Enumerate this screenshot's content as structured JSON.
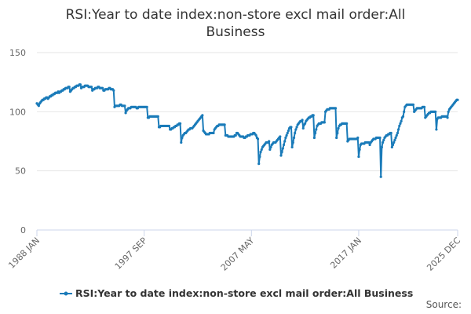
{
  "chart_data": {
    "type": "line",
    "title": "RSI:Year to date index:non-store excl mail order:All Business",
    "source_label": "Source:",
    "categories": [
      "1988 JAN",
      null,
      null,
      null,
      null,
      null,
      null,
      null,
      null,
      null,
      null,
      null,
      null,
      null,
      null,
      null,
      null,
      null,
      null,
      null,
      null,
      null,
      null,
      null,
      null,
      null,
      null,
      null,
      null,
      null,
      null,
      null,
      null,
      null,
      null,
      null,
      null,
      null,
      null,
      null,
      null,
      null,
      null,
      null,
      null,
      null,
      null,
      null,
      null,
      null,
      null,
      null,
      null,
      null,
      null,
      null,
      null,
      null,
      null,
      null,
      null,
      null,
      null,
      null,
      null,
      null,
      null,
      null,
      null,
      null,
      null,
      null,
      null,
      null,
      null,
      null,
      null,
      null,
      null,
      null,
      null,
      null,
      null,
      null,
      null,
      null,
      null,
      null,
      null,
      null,
      null,
      null,
      null,
      null,
      null,
      null,
      null,
      null,
      null,
      null,
      null,
      null,
      null,
      null,
      null,
      null,
      null,
      null,
      null,
      null,
      null,
      null,
      null,
      null,
      null,
      null,
      "1997 SEP",
      null,
      null,
      null,
      null,
      null,
      null,
      null,
      null,
      null,
      null,
      null,
      null,
      null,
      null,
      null,
      null,
      null,
      null,
      null,
      null,
      null,
      null,
      null,
      null,
      null,
      null,
      null,
      null,
      null,
      null,
      null,
      null,
      null,
      null,
      null,
      null,
      null,
      null,
      null,
      null,
      null,
      null,
      null,
      null,
      null,
      null,
      null,
      null,
      null,
      null,
      null,
      null,
      null,
      null,
      null,
      null,
      null,
      null,
      null,
      null,
      null,
      null,
      null,
      null,
      null,
      null,
      null,
      null,
      null,
      null,
      null,
      null,
      null,
      null,
      null,
      null,
      null,
      null,
      null,
      null,
      null,
      null,
      null,
      null,
      null,
      null,
      null,
      null,
      null,
      null,
      null,
      null,
      null,
      null,
      null,
      null,
      null,
      null,
      null,
      null,
      null,
      null,
      null,
      null,
      null,
      null,
      null,
      null,
      null,
      null,
      null,
      null,
      null,
      null,
      null,
      "2007 MAY",
      null,
      null,
      null,
      null,
      null,
      null,
      null,
      null,
      null,
      null,
      null,
      null,
      null,
      null,
      null,
      null,
      null,
      null,
      null,
      null,
      null,
      null,
      null,
      null,
      null,
      null,
      null,
      null,
      null,
      null,
      null,
      null,
      null,
      null,
      null,
      null,
      null,
      null,
      null,
      null,
      null,
      null,
      null,
      null,
      null,
      null,
      null,
      null,
      null,
      null,
      null,
      null,
      null,
      null,
      null,
      null,
      null,
      null,
      null,
      null,
      null,
      null,
      null,
      null,
      null,
      null,
      null,
      null,
      null,
      null,
      null,
      null,
      null,
      null,
      null,
      null,
      null,
      null,
      null,
      null,
      null,
      null,
      null,
      null,
      null,
      null,
      null,
      null,
      null,
      null,
      null,
      null,
      null,
      null,
      null,
      null,
      null,
      null,
      null,
      null,
      null,
      null,
      null,
      null,
      null,
      null,
      null,
      null,
      null,
      null,
      null,
      null,
      null,
      null,
      null,
      "2017 JAN",
      null,
      null,
      null,
      null,
      null,
      null,
      null,
      null,
      null,
      null,
      null,
      null,
      null,
      null,
      null,
      null,
      null,
      null,
      null,
      null,
      null,
      null,
      null,
      null,
      null,
      null,
      null,
      null,
      null,
      null,
      null,
      null,
      null,
      null,
      null,
      null,
      null,
      null,
      null,
      null,
      null,
      null,
      null,
      null,
      null,
      null,
      null,
      null,
      null,
      null,
      null,
      null,
      null,
      null,
      null,
      null,
      null,
      null,
      null,
      null,
      null,
      null,
      null,
      null,
      null,
      null,
      null,
      null,
      null,
      null,
      null,
      null,
      null,
      null,
      null,
      null,
      null,
      null,
      null,
      null,
      null,
      null,
      null,
      null,
      null,
      null,
      null,
      null,
      null,
      null,
      null,
      null,
      null,
      null,
      null,
      null,
      null,
      null,
      null,
      null,
      null,
      null,
      null,
      null,
      null,
      null,
      "2025 DEC"
    ],
    "series": [
      {
        "name": "RSI:Year to date index:non-store excl mail order:All Business",
        "color": "#1a7bb9",
        "values": [
          107,
          106,
          105,
          107,
          108,
          109,
          110,
          110,
          111,
          111,
          112,
          112,
          111,
          112,
          113,
          113,
          114,
          114,
          115,
          115,
          116,
          116,
          116,
          117,
          116,
          117,
          117,
          118,
          118,
          119,
          119,
          120,
          120,
          120,
          121,
          121,
          117,
          118,
          119,
          120,
          120,
          121,
          121,
          122,
          122,
          122,
          123,
          123,
          120,
          121,
          121,
          121,
          122,
          122,
          122,
          122,
          121,
          121,
          121,
          121,
          118,
          119,
          119,
          120,
          120,
          120,
          121,
          121,
          120,
          120,
          120,
          120,
          118,
          118,
          119,
          119,
          119,
          119,
          120,
          120,
          119,
          119,
          119,
          118,
          104,
          105,
          105,
          105,
          105,
          105,
          106,
          106,
          105,
          105,
          105,
          105,
          99,
          101,
          102,
          103,
          103,
          103,
          104,
          104,
          104,
          104,
          104,
          104,
          103,
          103,
          104,
          104,
          104,
          104,
          104,
          104,
          104,
          104,
          104,
          104,
          95,
          95,
          96,
          96,
          96,
          96,
          96,
          96,
          96,
          96,
          96,
          96,
          87,
          87,
          88,
          88,
          88,
          88,
          88,
          88,
          88,
          88,
          88,
          88,
          85,
          85,
          86,
          86,
          87,
          87,
          88,
          88,
          89,
          89,
          90,
          90,
          74,
          78,
          80,
          81,
          82,
          82,
          83,
          84,
          85,
          85,
          86,
          86,
          86,
          87,
          88,
          89,
          90,
          91,
          92,
          93,
          94,
          95,
          96,
          97,
          84,
          83,
          82,
          81,
          81,
          81,
          81,
          82,
          82,
          82,
          82,
          82,
          85,
          86,
          87,
          88,
          88,
          89,
          89,
          89,
          89,
          89,
          89,
          89,
          80,
          80,
          80,
          79,
          79,
          79,
          79,
          79,
          79,
          79,
          80,
          80,
          82,
          82,
          81,
          80,
          79,
          79,
          79,
          79,
          78,
          78,
          79,
          79,
          80,
          80,
          80,
          81,
          81,
          81,
          82,
          82,
          81,
          80,
          78,
          77,
          56,
          62,
          66,
          68,
          70,
          71,
          72,
          73,
          74,
          74,
          74,
          75,
          68,
          70,
          72,
          73,
          74,
          74,
          74,
          75,
          76,
          77,
          78,
          79,
          63,
          66,
          69,
          72,
          75,
          78,
          80,
          82,
          84,
          86,
          87,
          87,
          70,
          74,
          78,
          82,
          85,
          87,
          89,
          90,
          91,
          92,
          92,
          93,
          86,
          89,
          90,
          92,
          93,
          94,
          95,
          95,
          96,
          96,
          97,
          97,
          78,
          82,
          85,
          88,
          89,
          90,
          90,
          90,
          91,
          91,
          91,
          91,
          100,
          101,
          102,
          102,
          102,
          103,
          103,
          103,
          103,
          103,
          103,
          103,
          78,
          82,
          86,
          88,
          89,
          89,
          90,
          90,
          90,
          90,
          90,
          90,
          75,
          76,
          77,
          77,
          77,
          77,
          77,
          77,
          77,
          77,
          77,
          78,
          62,
          68,
          72,
          73,
          73,
          73,
          73,
          74,
          74,
          74,
          74,
          74,
          72,
          74,
          75,
          76,
          77,
          77,
          77,
          78,
          78,
          78,
          78,
          78,
          45,
          70,
          74,
          76,
          78,
          79,
          80,
          80,
          81,
          81,
          82,
          82,
          70,
          72,
          74,
          76,
          78,
          80,
          82,
          85,
          88,
          90,
          92,
          95,
          96,
          100,
          104,
          105,
          106,
          106,
          106,
          106,
          106,
          106,
          106,
          106,
          100,
          101,
          102,
          103,
          103,
          103,
          103,
          103,
          103,
          104,
          104,
          104,
          95,
          96,
          97,
          98,
          99,
          99,
          100,
          100,
          100,
          100,
          100,
          100,
          85,
          94,
          95,
          95,
          95,
          95,
          96,
          96,
          96,
          96,
          96,
          96,
          95,
          100,
          102,
          103,
          104,
          105,
          106,
          107,
          108,
          109,
          110,
          110
        ]
      }
    ],
    "ylim": [
      0,
      150
    ],
    "yticks": [
      0,
      50,
      100,
      150
    ],
    "grid": true
  }
}
